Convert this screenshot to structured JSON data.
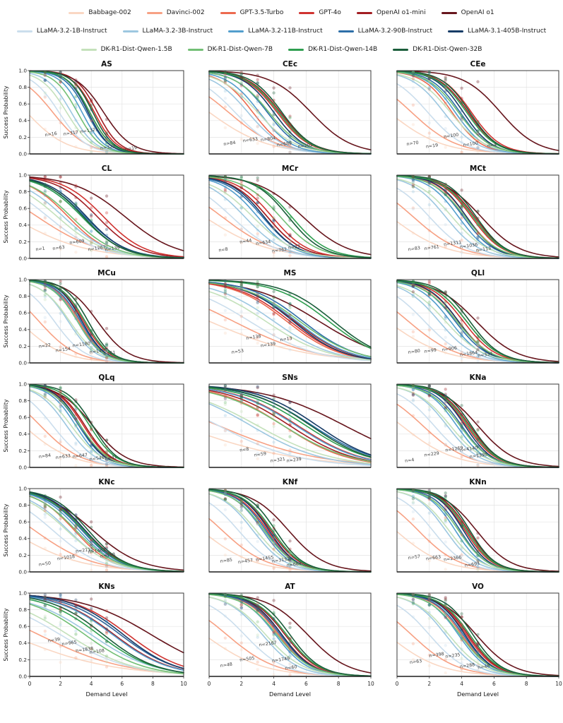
{
  "figure_title": "",
  "axes": {
    "xlabel": "Demand Level",
    "ylabel": "Success Probability",
    "xticks": [
      "0",
      "2",
      "4",
      "6",
      "8",
      "10"
    ],
    "yticks": [
      "0.0",
      "0.2",
      "0.4",
      "0.6",
      "0.8",
      "1.0"
    ],
    "xlim": [
      0,
      10
    ],
    "ylim": [
      0,
      1
    ]
  },
  "models": [
    {
      "label": "Babbage-002",
      "color": "#fad7c3",
      "slope_scale": 0.55
    },
    {
      "label": "Davinci-002",
      "color": "#f7a184",
      "slope_scale": 0.65
    },
    {
      "label": "GPT-3.5-Turbo",
      "color": "#ec6a4f",
      "slope_scale": 1.0
    },
    {
      "label": "GPT-4o",
      "color": "#d03330",
      "slope_scale": 1.0
    },
    {
      "label": "OpenAI o1-mini",
      "color": "#a21d22",
      "slope_scale": 1.0
    },
    {
      "label": "OpenAI o1",
      "color": "#67161d",
      "slope_scale": 0.8
    },
    {
      "label": "LLaMA-3.2-1B-Instruct",
      "color": "#cbdeed",
      "slope_scale": 0.8
    },
    {
      "label": "LLaMA-3.2-3B-Instruct",
      "color": "#9dc7e0",
      "slope_scale": 0.9
    },
    {
      "label": "LLaMA-3.2-11B-Instruct",
      "color": "#539ecd",
      "slope_scale": 1.0
    },
    {
      "label": "LLaMA-3.2-90B-Instruct",
      "color": "#2d6fa8",
      "slope_scale": 1.0
    },
    {
      "label": "LLaMA-3.1-405B-Instruct",
      "color": "#173c67",
      "slope_scale": 1.05
    },
    {
      "label": "DK-R1-Dist-Qwen-1.5B",
      "color": "#c4e1bb",
      "slope_scale": 0.85
    },
    {
      "label": "DK-R1-Dist-Qwen-7B",
      "color": "#72bf75",
      "slope_scale": 0.95
    },
    {
      "label": "DK-R1-Dist-Qwen-14B",
      "color": "#2f9e50",
      "slope_scale": 1.0
    },
    {
      "label": "DK-R1-Dist-Qwen-32B",
      "color": "#1b5e3b",
      "slope_scale": 1.05
    }
  ],
  "legend_rows": [
    [
      0,
      1,
      2,
      3,
      4,
      5
    ],
    [
      6,
      7,
      8,
      9,
      10
    ],
    [
      11,
      12,
      13,
      14
    ]
  ],
  "chart_data": {
    "type": "line",
    "description": "Logistic success-probability curves vs demand level per task panel; sigmoid params estimated from plot (y = 1/(1+exp(k*scale*(x-x0)))), x0 per model in models[] order.",
    "x_range": [
      0,
      10
    ],
    "panels": [
      {
        "title": "AS",
        "k": 1.4,
        "x0": [
          -0.2,
          1.5,
          3.9,
          4.2,
          4.4,
          4.8,
          1.9,
          2.7,
          3.4,
          3.7,
          3.8,
          2.4,
          3.1,
          3.9,
          4.1
        ],
        "annotations": [
          {
            "text": "n=16",
            "x": 1.0,
            "y": 0.21
          },
          {
            "text": "n=317",
            "x": 2.2,
            "y": 0.22
          },
          {
            "text": "n=1321",
            "x": 3.3,
            "y": 0.25
          },
          {
            "text": "n=322",
            "x": 4.6,
            "y": 0.05
          },
          {
            "text": "n=19",
            "x": 6.2,
            "y": 0.04
          }
        ]
      },
      {
        "title": "CEc",
        "k": 1.0,
        "x0": [
          0.0,
          1.2,
          2.7,
          4.2,
          4.4,
          6.3,
          1.6,
          2.4,
          3.1,
          3.6,
          4.0,
          3.0,
          3.7,
          4.3,
          4.5
        ],
        "annotations": [
          {
            "text": "n=84",
            "x": 0.9,
            "y": 0.1
          },
          {
            "text": "n=633",
            "x": 2.1,
            "y": 0.14
          },
          {
            "text": "n=804",
            "x": 3.2,
            "y": 0.15
          },
          {
            "text": "n=689",
            "x": 4.2,
            "y": 0.09
          },
          {
            "text": "n=201",
            "x": 5.5,
            "y": 0.07
          }
        ]
      },
      {
        "title": "CEe",
        "k": 1.1,
        "x0": [
          -0.5,
          0.9,
          3.4,
          4.6,
          4.4,
          6.4,
          1.9,
          2.9,
          3.6,
          3.9,
          4.1,
          3.3,
          3.8,
          4.3,
          4.5
        ],
        "annotations": [
          {
            "text": "n=70",
            "x": 0.6,
            "y": 0.1
          },
          {
            "text": "n=19",
            "x": 1.8,
            "y": 0.07
          },
          {
            "text": "n=100",
            "x": 2.9,
            "y": 0.19
          },
          {
            "text": "n=100",
            "x": 4.1,
            "y": 0.09
          },
          {
            "text": "n=4",
            "x": 5.6,
            "y": 0.08
          }
        ]
      },
      {
        "title": "CL",
        "k": 0.75,
        "x0": [
          -1.2,
          0.5,
          2.5,
          4.8,
          4.4,
          6.2,
          1.2,
          2.2,
          3.4,
          3.6,
          3.7,
          1.8,
          2.7,
          3.4,
          3.5
        ],
        "annotations": [
          {
            "text": "n=1",
            "x": 0.4,
            "y": 0.09
          },
          {
            "text": "n=63",
            "x": 1.5,
            "y": 0.1
          },
          {
            "text": "n=609",
            "x": 2.6,
            "y": 0.17
          },
          {
            "text": "n=1267",
            "x": 3.8,
            "y": 0.09
          },
          {
            "text": "n=139",
            "x": 4.9,
            "y": 0.09
          }
        ]
      },
      {
        "title": "MCr",
        "k": 0.9,
        "x0": [
          -0.3,
          0.8,
          3.6,
          3.9,
          3.6,
          5.8,
          1.4,
          2.2,
          3.0,
          3.3,
          3.4,
          2.7,
          4.4,
          5.1,
          4.9
        ],
        "annotations": [
          {
            "text": "n=8",
            "x": 0.6,
            "y": 0.08
          },
          {
            "text": "n=44",
            "x": 1.9,
            "y": 0.18
          },
          {
            "text": "n=634",
            "x": 2.9,
            "y": 0.16
          },
          {
            "text": "n=762",
            "x": 3.9,
            "y": 0.07
          },
          {
            "text": "n=23",
            "x": 4.9,
            "y": 0.11
          }
        ]
      },
      {
        "title": "MCt",
        "k": 1.05,
        "x0": [
          -0.4,
          1.0,
          4.3,
          4.6,
          4.8,
          5.2,
          2.0,
          3.0,
          3.8,
          4.1,
          4.3,
          3.4,
          4.2,
          4.7,
          4.9
        ],
        "annotations": [
          {
            "text": "n=83",
            "x": 0.7,
            "y": 0.09
          },
          {
            "text": "n=761",
            "x": 1.7,
            "y": 0.1
          },
          {
            "text": "n=1311",
            "x": 2.9,
            "y": 0.15
          },
          {
            "text": "n=1036",
            "x": 3.9,
            "y": 0.12
          },
          {
            "text": "n=113",
            "x": 4.9,
            "y": 0.08
          }
        ]
      },
      {
        "title": "MCu",
        "k": 1.25,
        "x0": [
          -0.7,
          0.6,
          3.2,
          3.5,
          3.6,
          4.4,
          1.6,
          2.5,
          3.1,
          3.3,
          3.4,
          2.6,
          3.1,
          3.6,
          3.8
        ],
        "annotations": [
          {
            "text": "n=22",
            "x": 0.6,
            "y": 0.18
          },
          {
            "text": "n=154",
            "x": 1.7,
            "y": 0.13
          },
          {
            "text": "n=1180",
            "x": 2.8,
            "y": 0.19
          },
          {
            "text": "n=1450",
            "x": 3.9,
            "y": 0.11
          },
          {
            "text": "n=61",
            "x": 4.8,
            "y": 0.09
          }
        ]
      },
      {
        "title": "MS",
        "k": 0.6,
        "x0": [
          0.0,
          1.5,
          4.8,
          5.0,
          5.3,
          6.8,
          2.5,
          4.0,
          5.4,
          5.8,
          5.2,
          3.5,
          5.6,
          7.4,
          7.7
        ],
        "annotations": [
          {
            "text": "n=53",
            "x": 1.4,
            "y": 0.11
          },
          {
            "text": "n=138",
            "x": 2.3,
            "y": 0.28
          },
          {
            "text": "n=139",
            "x": 3.2,
            "y": 0.19
          },
          {
            "text": "n=13",
            "x": 4.4,
            "y": 0.26
          }
        ]
      },
      {
        "title": "QLl",
        "k": 1.0,
        "x0": [
          -0.6,
          0.7,
          3.8,
          4.1,
          4.3,
          4.9,
          1.7,
          2.6,
          3.3,
          3.6,
          3.8,
          3.0,
          3.7,
          4.3,
          4.5
        ],
        "annotations": [
          {
            "text": "n=80",
            "x": 0.7,
            "y": 0.11
          },
          {
            "text": "n=99",
            "x": 1.7,
            "y": 0.12
          },
          {
            "text": "n=906",
            "x": 2.8,
            "y": 0.14
          },
          {
            "text": "n=1864",
            "x": 3.9,
            "y": 0.08
          },
          {
            "text": "n=337",
            "x": 5.0,
            "y": 0.07
          }
        ]
      },
      {
        "title": "QLq",
        "k": 1.15,
        "x0": [
          -0.4,
          0.7,
          3.3,
          3.5,
          3.6,
          4.1,
          1.5,
          2.4,
          3.0,
          3.2,
          3.3,
          2.7,
          3.3,
          3.9,
          4.1
        ],
        "annotations": [
          {
            "text": "n=84",
            "x": 0.6,
            "y": 0.11
          },
          {
            "text": "n=633",
            "x": 1.7,
            "y": 0.1
          },
          {
            "text": "n=647",
            "x": 2.8,
            "y": 0.11
          },
          {
            "text": "n=546",
            "x": 3.9,
            "y": 0.08
          },
          {
            "text": "n=41",
            "x": 4.9,
            "y": 0.09
          }
        ]
      },
      {
        "title": "SNs",
        "k": 0.5,
        "x0": [
          -1.8,
          0.6,
          4.6,
          5.5,
          5.0,
          8.4,
          0.6,
          2.6,
          5.4,
          6.4,
          6.7,
          3.0,
          4.6,
          6.0,
          6.3
        ],
        "annotations": [
          {
            "text": "n=8",
            "x": 1.9,
            "y": 0.19
          },
          {
            "text": "n=59",
            "x": 2.8,
            "y": 0.13
          },
          {
            "text": "n=321",
            "x": 3.8,
            "y": 0.06
          },
          {
            "text": "n=239",
            "x": 4.8,
            "y": 0.06
          }
        ]
      },
      {
        "title": "KNa",
        "k": 1.1,
        "x0": [
          0.3,
          1.6,
          4.0,
          4.3,
          4.5,
          5.0,
          2.3,
          3.1,
          3.7,
          4.0,
          4.2,
          3.3,
          3.9,
          4.4,
          4.6
        ],
        "annotations": [
          {
            "text": "n=4",
            "x": 0.5,
            "y": 0.06
          },
          {
            "text": "n=229",
            "x": 1.7,
            "y": 0.13
          },
          {
            "text": "n=1269",
            "x": 3.0,
            "y": 0.19
          },
          {
            "text": "n=4140",
            "x": 3.9,
            "y": 0.19
          },
          {
            "text": "n=1390",
            "x": 4.5,
            "y": 0.11
          }
        ]
      },
      {
        "title": "KNc",
        "k": 0.8,
        "x0": [
          -1.3,
          0.3,
          2.9,
          3.4,
          3.6,
          4.1,
          1.5,
          2.5,
          3.2,
          3.4,
          3.6,
          2.4,
          3.0,
          3.5,
          3.8
        ],
        "annotations": [
          {
            "text": "n=50",
            "x": 0.6,
            "y": 0.07
          },
          {
            "text": "n=1018",
            "x": 1.8,
            "y": 0.14
          },
          {
            "text": "n=2115",
            "x": 3.0,
            "y": 0.23
          },
          {
            "text": "n=1462",
            "x": 3.8,
            "y": 0.22
          },
          {
            "text": "n=198",
            "x": 4.6,
            "y": 0.17
          }
        ]
      },
      {
        "title": "KNf",
        "k": 1.1,
        "x0": [
          -0.5,
          0.8,
          3.3,
          3.6,
          3.8,
          4.9,
          1.8,
          2.7,
          3.3,
          3.5,
          3.7,
          2.9,
          3.4,
          3.9,
          4.1
        ],
        "annotations": [
          {
            "text": "n=85",
            "x": 0.7,
            "y": 0.11
          },
          {
            "text": "n=457",
            "x": 1.8,
            "y": 0.1
          },
          {
            "text": "n=1455",
            "x": 2.9,
            "y": 0.13
          },
          {
            "text": "n=3132",
            "x": 3.9,
            "y": 0.11
          },
          {
            "text": "n=684",
            "x": 4.8,
            "y": 0.06
          }
        ]
      },
      {
        "title": "KNn",
        "k": 1.2,
        "x0": [
          -0.1,
          1.3,
          3.9,
          4.2,
          4.4,
          4.9,
          2.2,
          3.0,
          3.6,
          3.9,
          4.1,
          3.2,
          3.8,
          4.3,
          4.5
        ],
        "annotations": [
          {
            "text": "n=57",
            "x": 0.7,
            "y": 0.15
          },
          {
            "text": "n=663",
            "x": 1.8,
            "y": 0.14
          },
          {
            "text": "n=2366",
            "x": 2.9,
            "y": 0.13
          },
          {
            "text": "n=693",
            "x": 4.2,
            "y": 0.06
          }
        ]
      },
      {
        "title": "KNs",
        "k": 0.55,
        "x0": [
          -1.3,
          0.6,
          5.9,
          6.4,
          5.5,
          7.9,
          2.0,
          4.0,
          5.4,
          5.9,
          6.1,
          2.5,
          3.6,
          4.5,
          4.8
        ],
        "annotations": [
          {
            "text": "n=39",
            "x": 1.2,
            "y": 0.41
          },
          {
            "text": "n=965",
            "x": 2.1,
            "y": 0.37
          },
          {
            "text": "n=1838",
            "x": 3.0,
            "y": 0.29
          },
          {
            "text": "n=108",
            "x": 3.9,
            "y": 0.27
          }
        ]
      },
      {
        "title": "AT",
        "k": 1.0,
        "x0": [
          -0.3,
          1.1,
          4.3,
          4.5,
          4.7,
          6.1,
          2.2,
          3.3,
          4.1,
          4.4,
          4.5,
          3.5,
          4.2,
          4.8,
          5.0
        ],
        "annotations": [
          {
            "text": "n=48",
            "x": 0.7,
            "y": 0.11
          },
          {
            "text": "n=505",
            "x": 1.9,
            "y": 0.18
          },
          {
            "text": "n=2167",
            "x": 3.1,
            "y": 0.36
          },
          {
            "text": "n=1749",
            "x": 3.9,
            "y": 0.17
          },
          {
            "text": "n=60",
            "x": 4.7,
            "y": 0.08
          }
        ]
      },
      {
        "title": "VO",
        "k": 1.1,
        "x0": [
          -0.6,
          0.9,
          4.0,
          4.3,
          4.4,
          4.9,
          2.0,
          3.0,
          3.8,
          4.1,
          4.2,
          3.2,
          3.9,
          4.5,
          4.7
        ],
        "annotations": [
          {
            "text": "n=63",
            "x": 0.8,
            "y": 0.15
          },
          {
            "text": "n=398",
            "x": 2.0,
            "y": 0.23
          },
          {
            "text": "n=235",
            "x": 3.0,
            "y": 0.22
          },
          {
            "text": "n=288",
            "x": 3.9,
            "y": 0.1
          },
          {
            "text": "n=48",
            "x": 5.0,
            "y": 0.09
          }
        ]
      }
    ]
  },
  "style": {
    "grid_color": "#e3e3e3",
    "spine_color": "#3a3a3a",
    "annotation_color": "#3d3d3d",
    "tick_color": "#262626"
  }
}
